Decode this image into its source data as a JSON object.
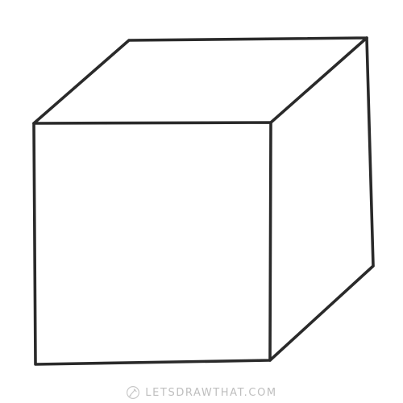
{
  "drawing": {
    "subject": "cube",
    "line_color": "#2a2a2a",
    "background_color": "#ffffff"
  },
  "watermark": {
    "text": "LETSDRAWTHAT.COM",
    "icon": "pencil-logo-icon",
    "color": "#8a8a8a"
  }
}
